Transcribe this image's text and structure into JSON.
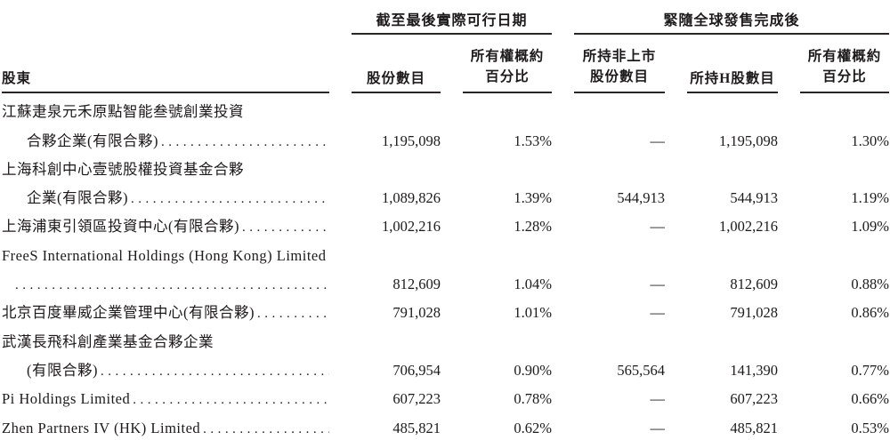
{
  "table": {
    "shareholder_col_header": "股東",
    "group_headers": {
      "latest_practicable_date": "截至最後實際可行日期",
      "post_global_offering": "緊隨全球發售完成後"
    },
    "col_headers": {
      "shares_current": "股份數目",
      "ownership_pct_current": "所有權概約\n百分比",
      "nonlisted_shares": "所持非上市\n股份數目",
      "h_shares": "所持H股數目",
      "ownership_pct_after": "所有權概約\n百分比"
    },
    "rows": [
      {
        "line1": "江蘇疌泉元禾原點智能叁號創業投資",
        "line2": "合夥企業(有限合夥)",
        "values": [
          "1,195,098",
          "1.53%",
          "—",
          "1,195,098",
          "1.30%"
        ]
      },
      {
        "line1": "上海科創中心壹號股權投資基金合夥",
        "line2": "企業(有限合夥)",
        "values": [
          "1,089,826",
          "1.39%",
          "544,913",
          "544,913",
          "1.19%"
        ]
      },
      {
        "line1": "上海浦東引領區投資中心(有限合夥)",
        "values": [
          "1,002,216",
          "1.28%",
          "—",
          "1,002,216",
          "1.09%"
        ]
      },
      {
        "line1": "FreeS International Holdings (Hong Kong) Limited",
        "line2": "",
        "values": [
          "812,609",
          "1.04%",
          "—",
          "812,609",
          "0.88%"
        ]
      },
      {
        "line1": "北京百度畢威企業管理中心(有限合夥)",
        "values": [
          "791,028",
          "1.01%",
          "—",
          "791,028",
          "0.86%"
        ]
      },
      {
        "line1": "武漢長飛科創產業基金合夥企業",
        "line2": "(有限合夥)",
        "values": [
          "706,954",
          "0.90%",
          "565,564",
          "141,390",
          "0.77%"
        ]
      },
      {
        "line1": "Pi Holdings Limited",
        "values": [
          "607,223",
          "0.78%",
          "—",
          "607,223",
          "0.66%"
        ]
      },
      {
        "line1": "Zhen Partners IV (HK) Limited",
        "values": [
          "485,821",
          "0.62%",
          "—",
          "485,821",
          "0.53%"
        ]
      }
    ]
  }
}
